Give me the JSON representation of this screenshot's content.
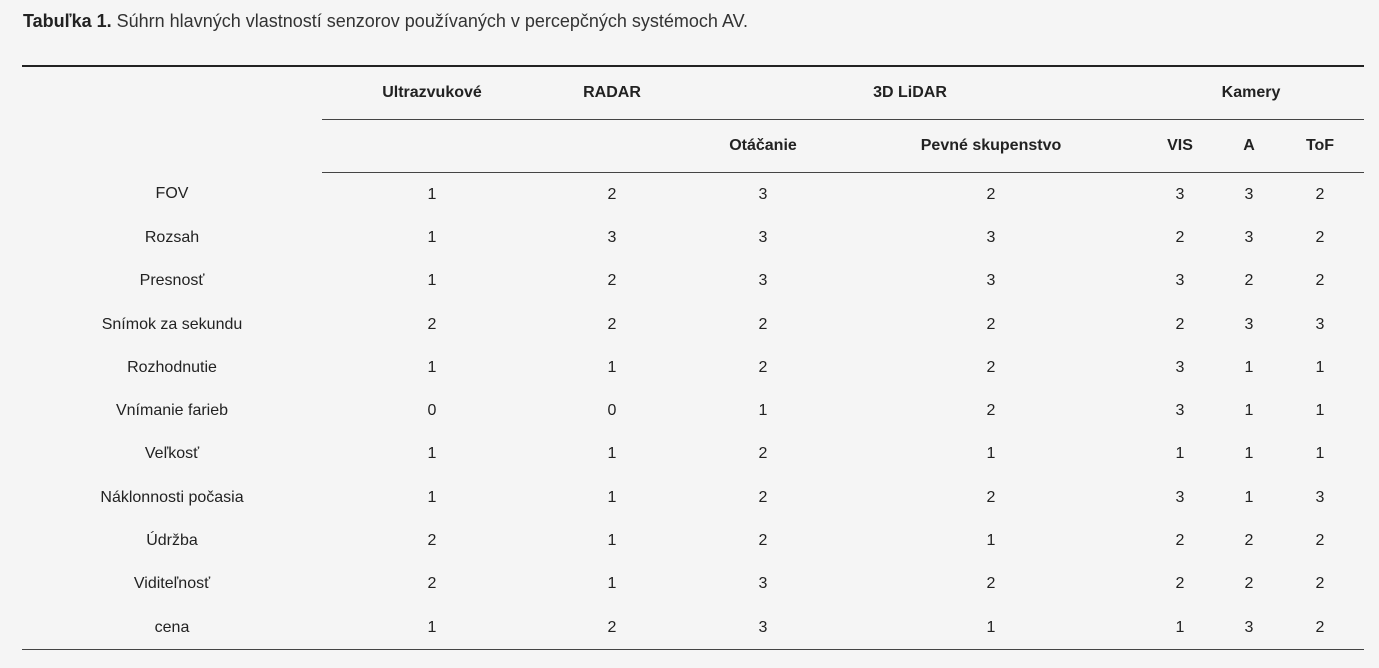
{
  "caption": {
    "label": "Tabuľka 1.",
    "text": " Súhrn hlavných vlastností senzorov používaných v percepčných systémoch AV."
  },
  "header": {
    "groups": {
      "ultrasonic": "Ultrazvukové",
      "radar": "RADAR",
      "lidar": "3D LiDAR",
      "cameras": "Kamery"
    },
    "sub": {
      "rotating": "Otáčanie",
      "solid_state": "Pevné skupenstvo",
      "vis": "VIS",
      "a": "A",
      "tof": "ToF"
    }
  },
  "rows": [
    {
      "label": "FOV",
      "values": [
        "1",
        "2",
        "3",
        "2",
        "3",
        "3",
        "2"
      ]
    },
    {
      "label": "Rozsah",
      "values": [
        "1",
        "3",
        "3",
        "3",
        "2",
        "3",
        "2"
      ]
    },
    {
      "label": "Presnosť",
      "values": [
        "1",
        "2",
        "3",
        "3",
        "3",
        "2",
        "2"
      ]
    },
    {
      "label": "Snímok za sekundu",
      "values": [
        "2",
        "2",
        "2",
        "2",
        "2",
        "3",
        "3"
      ]
    },
    {
      "label": "Rozhodnutie",
      "values": [
        "1",
        "1",
        "2",
        "2",
        "3",
        "1",
        "1"
      ]
    },
    {
      "label": "Vnímanie farieb",
      "values": [
        "0",
        "0",
        "1",
        "2",
        "3",
        "1",
        "1"
      ]
    },
    {
      "label": "Veľkosť",
      "values": [
        "1",
        "1",
        "2",
        "1",
        "1",
        "1",
        "1"
      ]
    },
    {
      "label": "Náklonnosti počasia",
      "values": [
        "1",
        "1",
        "2",
        "2",
        "3",
        "1",
        "3"
      ]
    },
    {
      "label": "Údržba",
      "values": [
        "2",
        "1",
        "2",
        "1",
        "2",
        "2",
        "2"
      ]
    },
    {
      "label": "Viditeľnosť",
      "values": [
        "2",
        "1",
        "3",
        "2",
        "2",
        "2",
        "2"
      ]
    },
    {
      "label": "cena",
      "values": [
        "1",
        "2",
        "3",
        "1",
        "1",
        "3",
        "2"
      ]
    }
  ]
}
